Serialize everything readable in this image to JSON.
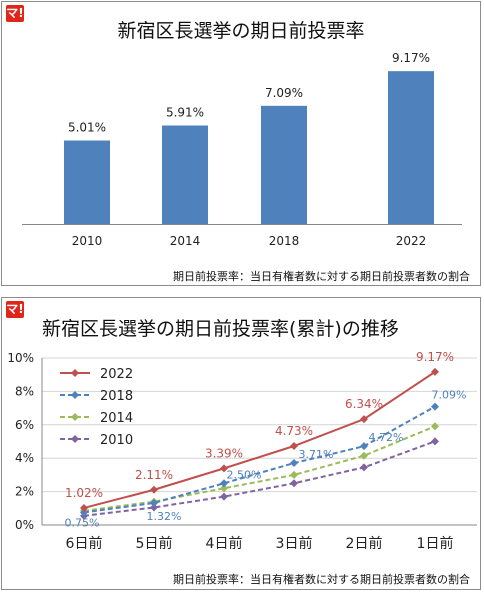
{
  "charts": [
    {
      "logo": "マ!",
      "title": "新宿区長選挙の期日前投票率",
      "footnote": "期日前投票率：当日有権者数に対する期日前投票者数の割合"
    },
    {
      "logo": "マ!",
      "title": "新宿区長選挙の期日前投票率(累計)の推移",
      "footnote": "期日前投票率：当日有権者数に対する期日前投票者数の割合"
    }
  ],
  "chart_data": [
    {
      "type": "bar",
      "title": "新宿区長選挙の期日前投票率",
      "categories": [
        "2010",
        "2014",
        "2018",
        "2022"
      ],
      "values": [
        5.01,
        5.91,
        7.09,
        9.17
      ],
      "value_labels": [
        "5.01%",
        "5.91%",
        "7.09%",
        "9.17%"
      ],
      "bar_color": "#4f81bd",
      "ylim": [
        0,
        10.5
      ],
      "grid": false
    },
    {
      "type": "line",
      "title": "新宿区長選挙の期日前投票率(累計)の推移",
      "categories": [
        "6日前",
        "5日前",
        "4日前",
        "3日前",
        "2日前",
        "1日前"
      ],
      "ylim": [
        0,
        10
      ],
      "yticks": [
        "0%",
        "2%",
        "4%",
        "6%",
        "8%",
        "10%"
      ],
      "grid": true,
      "legend": "top-left",
      "series": [
        {
          "name": "2022",
          "color": "#c0504d",
          "dash": "solid",
          "marker": "diamond",
          "values": [
            1.02,
            2.11,
            3.39,
            4.73,
            6.34,
            9.17
          ],
          "labels": [
            "1.02%",
            "2.11%",
            "3.39%",
            "4.73%",
            "6.34%",
            "9.17%"
          ]
        },
        {
          "name": "2018",
          "color": "#4f81bd",
          "dash": "dashed",
          "marker": "diamond",
          "values": [
            0.75,
            1.32,
            2.5,
            3.71,
            4.72,
            7.09
          ],
          "labels": [
            "0.75%",
            "1.32%",
            "2.50%",
            "3.71%",
            "4.72%",
            "7.09%"
          ]
        },
        {
          "name": "2014",
          "color": "#9bbb59",
          "dash": "dashed",
          "marker": "diamond",
          "values": [
            0.85,
            1.4,
            2.2,
            3.0,
            4.15,
            5.91
          ],
          "labels": []
        },
        {
          "name": "2010",
          "color": "#8064a2",
          "dash": "dashed",
          "marker": "diamond",
          "values": [
            0.55,
            1.05,
            1.7,
            2.5,
            3.45,
            5.01
          ],
          "labels": []
        }
      ]
    }
  ]
}
